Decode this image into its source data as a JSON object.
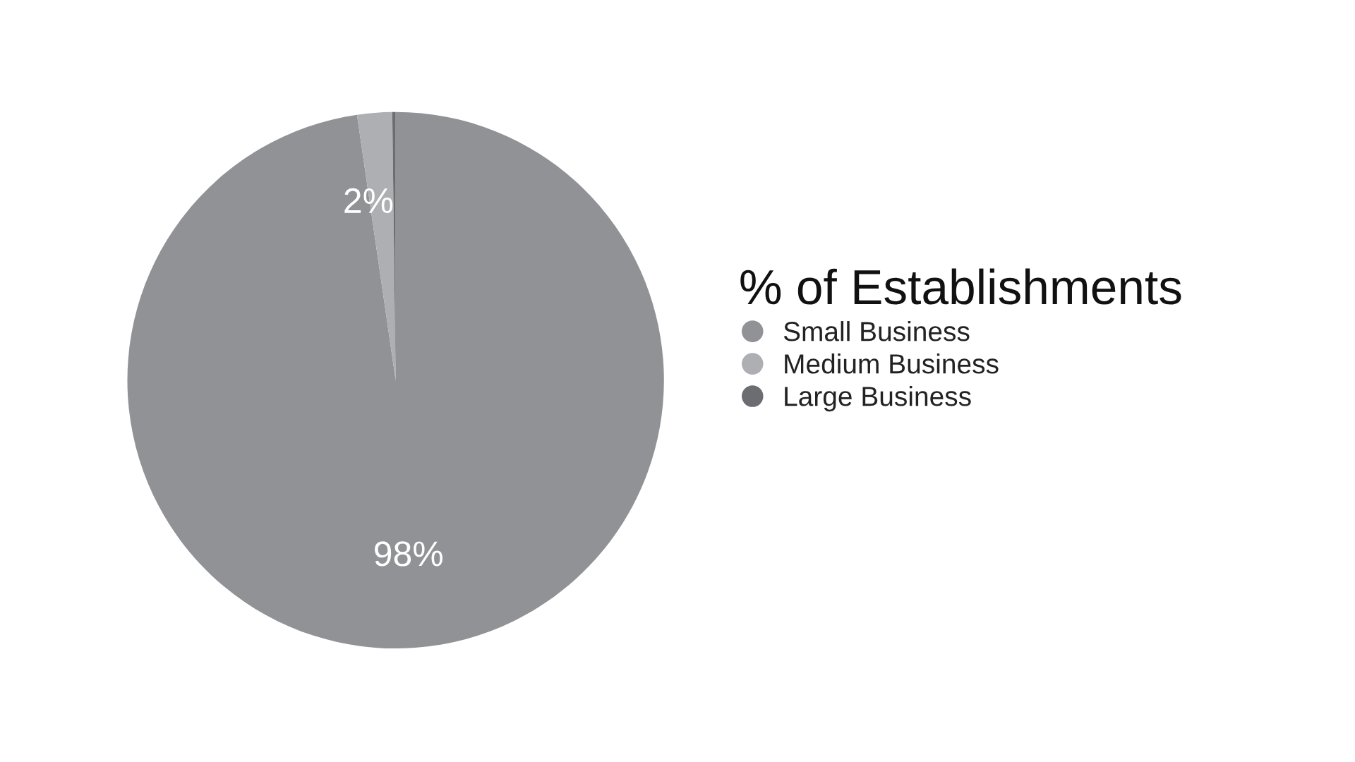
{
  "chart_data": {
    "type": "pie",
    "legend_title": "% of Establishments",
    "categories": [
      "Small Business",
      "Medium Business",
      "Large Business"
    ],
    "values": [
      97.7,
      2.1,
      0.2
    ],
    "value_labels": [
      "98%",
      "2%",
      null
    ],
    "colors": [
      "#909296",
      "#aeafb2",
      "#6c6d70"
    ],
    "legend": "right"
  }
}
